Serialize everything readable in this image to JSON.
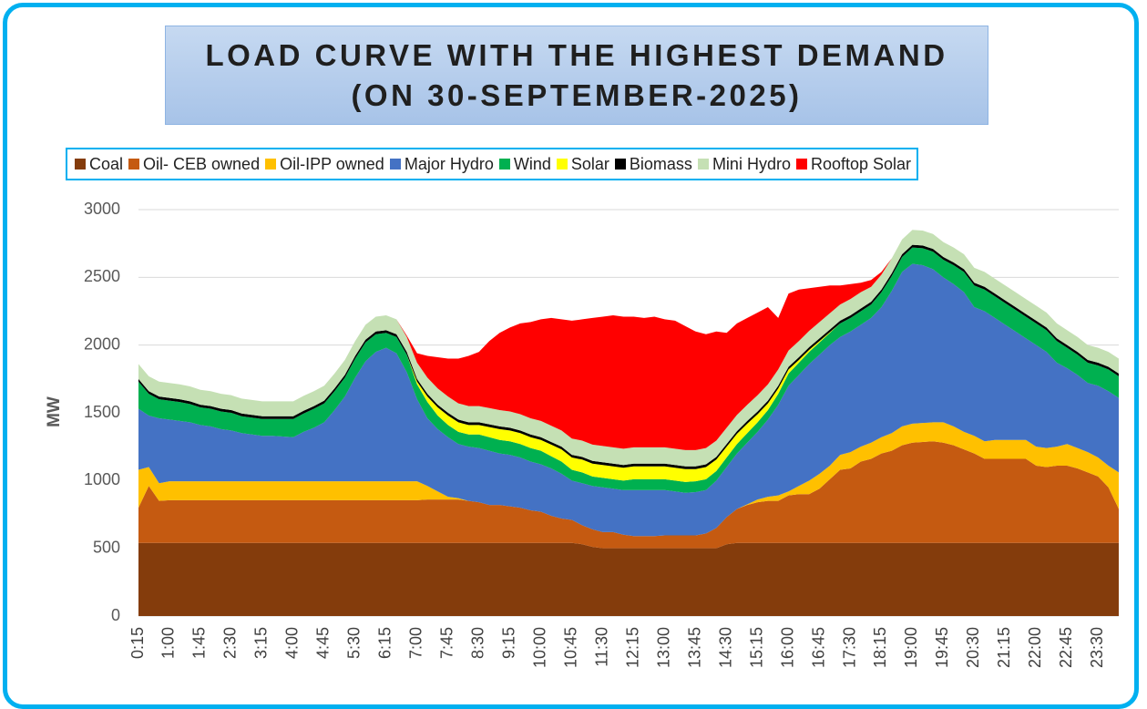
{
  "chart_data": {
    "type": "stacked_area",
    "title": "LOAD CURVE WITH THE HIGHEST DEMAND",
    "subtitle": "(ON 30-SEPTEMBER-2025)",
    "y_label": "MW",
    "ylim": [
      0,
      3000
    ],
    "yticks": [
      0,
      500,
      1000,
      1500,
      2000,
      2500,
      3000
    ],
    "grid": true,
    "legend": "top",
    "categories": [
      "0:15",
      null,
      null,
      "1:00",
      null,
      null,
      "1:45",
      null,
      null,
      "2:30",
      null,
      null,
      "3:15",
      null,
      null,
      "4:00",
      null,
      null,
      "4:45",
      null,
      null,
      "5:30",
      null,
      null,
      "6:15",
      null,
      null,
      "7:00",
      null,
      null,
      "7:45",
      null,
      null,
      "8:30",
      null,
      null,
      "9:15",
      null,
      null,
      "10:00",
      null,
      null,
      "10:45",
      null,
      null,
      "11:30",
      null,
      null,
      "12:15",
      null,
      null,
      "13:00",
      null,
      null,
      "13:45",
      null,
      null,
      "14:30",
      null,
      null,
      "15:15",
      null,
      null,
      "16:00",
      null,
      null,
      "16:45",
      null,
      null,
      "17:30",
      null,
      null,
      "18:15",
      null,
      null,
      "19:00",
      null,
      null,
      "19:45",
      null,
      null,
      "20:30",
      null,
      null,
      "21:15",
      null,
      null,
      "22:00",
      null,
      null,
      "22:45",
      null,
      null,
      "23:30",
      null,
      null
    ],
    "series": [
      {
        "name": "Coal",
        "color": "#843c0c",
        "values": [
          540,
          540,
          540,
          540,
          540,
          540,
          540,
          540,
          540,
          540,
          540,
          540,
          540,
          540,
          540,
          540,
          540,
          540,
          540,
          540,
          540,
          540,
          540,
          540,
          540,
          540,
          540,
          540,
          540,
          540,
          540,
          540,
          540,
          540,
          540,
          540,
          540,
          540,
          540,
          540,
          540,
          540,
          540,
          530,
          510,
          500,
          500,
          500,
          500,
          500,
          500,
          500,
          500,
          500,
          500,
          500,
          500,
          530,
          540,
          540,
          540,
          540,
          540,
          540,
          540,
          540,
          540,
          540,
          540,
          540,
          540,
          540,
          540,
          540,
          540,
          540,
          540,
          540,
          540,
          540,
          540,
          540,
          540,
          540,
          540,
          540,
          540,
          540,
          540,
          540,
          540,
          540,
          540,
          540,
          540,
          540
        ]
      },
      {
        "name": "Oil- CEB owned",
        "color": "#c55a11",
        "values": [
          260,
          420,
          310,
          315,
          315,
          315,
          315,
          315,
          315,
          315,
          315,
          315,
          315,
          315,
          315,
          315,
          315,
          315,
          315,
          315,
          315,
          315,
          315,
          315,
          315,
          315,
          315,
          315,
          320,
          320,
          320,
          320,
          310,
          300,
          280,
          280,
          270,
          260,
          240,
          230,
          200,
          180,
          170,
          140,
          130,
          120,
          120,
          100,
          90,
          90,
          90,
          95,
          95,
          95,
          95,
          110,
          150,
          200,
          250,
          280,
          300,
          310,
          310,
          350,
          360,
          360,
          400,
          470,
          540,
          550,
          600,
          620,
          660,
          680,
          720,
          740,
          745,
          750,
          740,
          720,
          690,
          660,
          620,
          620,
          620,
          620,
          620,
          570,
          560,
          570,
          570,
          550,
          520,
          490,
          410,
          250
        ]
      },
      {
        "name": "Oil-IPP owned",
        "color": "#ffc000",
        "values": [
          280,
          140,
          130,
          140,
          140,
          140,
          140,
          140,
          140,
          140,
          140,
          140,
          140,
          140,
          140,
          140,
          140,
          140,
          140,
          140,
          140,
          140,
          140,
          140,
          140,
          140,
          140,
          140,
          100,
          60,
          20,
          10,
          0,
          0,
          0,
          0,
          0,
          0,
          0,
          0,
          0,
          0,
          0,
          0,
          0,
          0,
          0,
          0,
          0,
          0,
          0,
          0,
          0,
          0,
          0,
          0,
          0,
          0,
          0,
          5,
          20,
          30,
          40,
          30,
          60,
          100,
          110,
          100,
          110,
          120,
          110,
          120,
          120,
          130,
          140,
          140,
          140,
          140,
          150,
          140,
          130,
          130,
          130,
          140,
          140,
          140,
          140,
          140,
          140,
          140,
          160,
          150,
          150,
          140,
          160,
          270
        ]
      },
      {
        "name": "Major Hydro",
        "color": "#4472c4",
        "values": [
          450,
          380,
          480,
          455,
          445,
          435,
          415,
          405,
          385,
          375,
          355,
          345,
          335,
          335,
          330,
          325,
          365,
          395,
          435,
          525,
          625,
          765,
          885,
          955,
          985,
          945,
          805,
          605,
          500,
          460,
          440,
          400,
          400,
          400,
          400,
          380,
          380,
          370,
          360,
          350,
          350,
          330,
          290,
          310,
          320,
          330,
          320,
          330,
          340,
          340,
          340,
          335,
          325,
          315,
          320,
          320,
          350,
          370,
          410,
          455,
          500,
          570,
          670,
          780,
          820,
          860,
          880,
          890,
          870,
          890,
          900,
          920,
          960,
          1050,
          1140,
          1180,
          1165,
          1130,
          1070,
          1050,
          1030,
          950,
          960,
          900,
          850,
          800,
          750,
          750,
          710,
          620,
          560,
          540,
          510,
          530,
          550,
          550
        ]
      },
      {
        "name": "Wind",
        "color": "#00b050",
        "values": [
          200,
          160,
          140,
          140,
          140,
          135,
          130,
          130,
          130,
          130,
          125,
          125,
          125,
          125,
          130,
          135,
          135,
          140,
          140,
          140,
          140,
          140,
          140,
          130,
          110,
          120,
          130,
          110,
          120,
          100,
          90,
          90,
          90,
          100,
          100,
          100,
          100,
          100,
          100,
          100,
          90,
          90,
          80,
          80,
          70,
          70,
          70,
          70,
          80,
          80,
          80,
          80,
          80,
          80,
          80,
          80,
          70,
          70,
          70,
          70,
          70,
          70,
          80,
          90,
          90,
          90,
          90,
          90,
          100,
          100,
          100,
          100,
          110,
          110,
          110,
          120,
          125,
          130,
          130,
          140,
          150,
          160,
          160,
          160,
          160,
          160,
          160,
          160,
          160,
          160,
          150,
          150,
          150,
          150,
          160,
          160
        ]
      },
      {
        "name": "Solar",
        "color": "#ffff00",
        "values": [
          0,
          0,
          0,
          0,
          0,
          0,
          0,
          0,
          0,
          0,
          0,
          0,
          0,
          0,
          0,
          0,
          0,
          0,
          0,
          0,
          0,
          0,
          0,
          0,
          0,
          0,
          0,
          20,
          40,
          60,
          70,
          70,
          70,
          70,
          75,
          80,
          80,
          80,
          80,
          80,
          85,
          90,
          90,
          95,
          95,
          95,
          95,
          95,
          95,
          95,
          95,
          95,
          95,
          95,
          90,
          90,
          85,
          80,
          75,
          70,
          60,
          50,
          40,
          30,
          20,
          15,
          10,
          5,
          0,
          0,
          0,
          0,
          0,
          0,
          0,
          0,
          0,
          0,
          0,
          0,
          0,
          0,
          0,
          0,
          0,
          0,
          0,
          0,
          0,
          0,
          0,
          0,
          0,
          0,
          0,
          0
        ]
      },
      {
        "name": "Biomass",
        "color": "#000000",
        "values": [
          20,
          20,
          20,
          20,
          20,
          20,
          20,
          20,
          20,
          20,
          20,
          20,
          20,
          20,
          20,
          20,
          20,
          20,
          20,
          20,
          20,
          20,
          20,
          20,
          20,
          20,
          20,
          20,
          20,
          20,
          20,
          20,
          20,
          20,
          20,
          20,
          20,
          20,
          20,
          20,
          20,
          20,
          20,
          20,
          20,
          20,
          20,
          20,
          20,
          20,
          20,
          20,
          20,
          20,
          20,
          20,
          20,
          20,
          20,
          20,
          20,
          20,
          20,
          20,
          20,
          20,
          20,
          20,
          20,
          20,
          20,
          20,
          20,
          20,
          20,
          20,
          20,
          20,
          20,
          20,
          20,
          20,
          20,
          20,
          20,
          20,
          20,
          20,
          20,
          20,
          20,
          20,
          20,
          20,
          20,
          20
        ]
      },
      {
        "name": "Mini Hydro",
        "color": "#c5e0b4",
        "values": [
          110,
          110,
          110,
          110,
          110,
          110,
          110,
          110,
          110,
          110,
          110,
          110,
          110,
          110,
          110,
          110,
          110,
          110,
          110,
          110,
          110,
          110,
          110,
          110,
          110,
          110,
          110,
          120,
          120,
          120,
          120,
          120,
          120,
          120,
          120,
          120,
          120,
          120,
          120,
          120,
          120,
          120,
          120,
          120,
          120,
          120,
          120,
          120,
          120,
          120,
          120,
          120,
          120,
          120,
          120,
          120,
          120,
          120,
          120,
          120,
          120,
          120,
          120,
          120,
          120,
          120,
          120,
          120,
          120,
          120,
          120,
          110,
          110,
          110,
          110,
          110,
          110,
          110,
          110,
          110,
          110,
          110,
          110,
          110,
          110,
          110,
          110,
          110,
          110,
          110,
          110,
          110,
          110,
          110,
          110,
          110
        ]
      },
      {
        "name": "Rooftop Solar",
        "color": "#ff0000",
        "values": [
          0,
          0,
          0,
          0,
          0,
          0,
          0,
          0,
          0,
          0,
          0,
          0,
          0,
          0,
          0,
          0,
          0,
          0,
          0,
          0,
          0,
          0,
          0,
          0,
          0,
          0,
          10,
          70,
          160,
          230,
          280,
          330,
          370,
          400,
          495,
          570,
          620,
          670,
          710,
          750,
          795,
          820,
          870,
          895,
          935,
          955,
          975,
          975,
          965,
          955,
          965,
          945,
          945,
          915,
          875,
          840,
          805,
          700,
          675,
          640,
          610,
          570,
          380,
          420,
          380,
          315,
          260,
          205,
          140,
          110,
          70,
          50,
          20,
          0,
          0,
          0,
          0,
          0,
          0,
          0,
          0,
          0,
          0,
          0,
          0,
          0,
          0,
          0,
          0,
          0,
          0,
          0,
          0,
          0,
          0,
          0
        ]
      }
    ]
  }
}
